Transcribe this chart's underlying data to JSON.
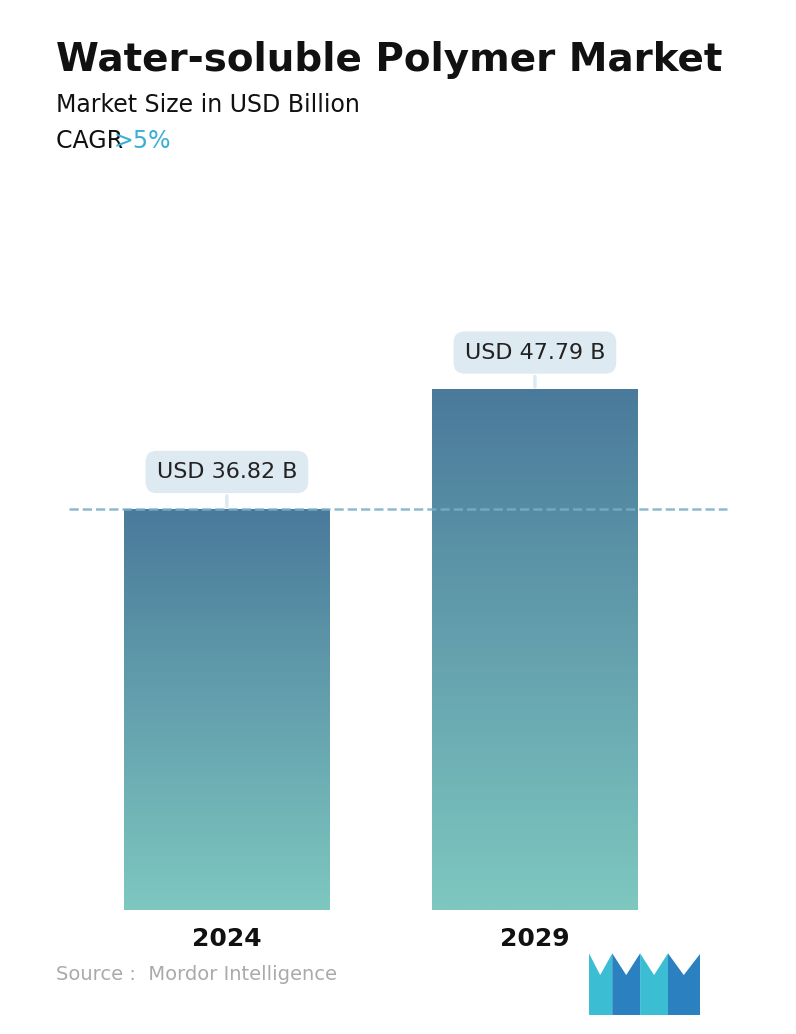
{
  "title": "Water-soluble Polymer Market",
  "subtitle": "Market Size in USD Billion",
  "cagr_label": "CAGR ",
  "cagr_value": ">5%",
  "categories": [
    "2024",
    "2029"
  ],
  "values": [
    36.82,
    47.79
  ],
  "bar_labels": [
    "USD 36.82 B",
    "USD 47.79 B"
  ],
  "source_text": "Source :  Mordor Intelligence",
  "bar_top_color": "#4a7a9b",
  "bar_bottom_color": "#7ec8c0",
  "dashed_line_color": "#7aaec8",
  "dashed_line_value": 36.82,
  "title_fontsize": 28,
  "subtitle_fontsize": 17,
  "cagr_fontsize": 17,
  "cagr_color": "#3aafd4",
  "xlabel_fontsize": 18,
  "label_box_color": "#ddeaf2",
  "label_fontsize": 16,
  "source_fontsize": 14,
  "source_color": "#aaaaaa",
  "ylim": [
    0,
    57
  ],
  "background_color": "#ffffff",
  "logo_colors": [
    "#3bbdd4",
    "#2b80c0",
    "#3bbdd4"
  ]
}
